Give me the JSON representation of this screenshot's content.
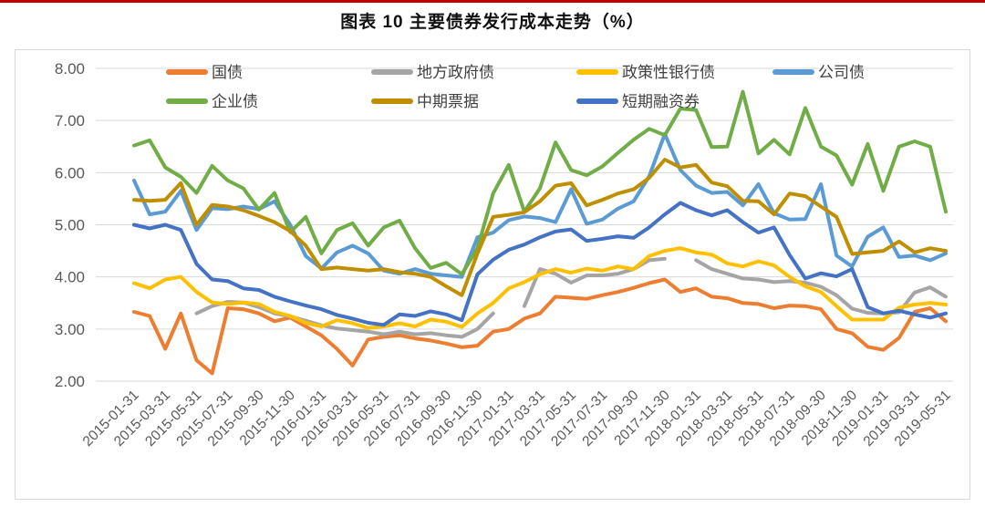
{
  "page": {
    "title": "图表 10 主要债券发行成本走势（%）",
    "accent_rule_color": "#c00000"
  },
  "chart_data": {
    "type": "line",
    "title": "图表 10 主要债券发行成本走势（%）",
    "grid": "horizontal",
    "legend_position": "top",
    "y_axis": {
      "min": 2,
      "max": 8,
      "tick_step": 1,
      "tick_labels": [
        "2.00",
        "3.00",
        "4.00",
        "5.00",
        "6.00",
        "7.00",
        "8.00"
      ]
    },
    "x_axis": {
      "point_count": 53,
      "start_month": "2015-01",
      "end_month": "2019-05",
      "tick_every_n_points": 2,
      "tick_labels": [
        "2015-01-31",
        "2015-03-31",
        "2015-05-31",
        "2015-07-31",
        "2015-09-30",
        "2015-11-30",
        "2016-01-31",
        "2016-03-31",
        "2016-05-31",
        "2016-07-31",
        "2016-09-30",
        "2016-11-30",
        "2017-01-31",
        "2017-03-31",
        "2017-05-31",
        "2017-07-31",
        "2017-09-30",
        "2017-11-30",
        "2018-01-31",
        "2018-03-31",
        "2018-05-31",
        "2018-07-31",
        "2018-09-30",
        "2018-11-30",
        "2019-01-31",
        "2019-03-31",
        "2019-05-31"
      ]
    },
    "series": [
      {
        "name": "国债",
        "color": "#ED7D31",
        "values": [
          3.33,
          3.25,
          2.62,
          3.3,
          2.4,
          2.15,
          3.4,
          3.38,
          3.3,
          3.15,
          3.22,
          3.05,
          2.88,
          2.62,
          2.3,
          2.8,
          2.85,
          2.88,
          2.82,
          2.78,
          2.72,
          2.65,
          2.68,
          2.95,
          3.0,
          3.2,
          3.3,
          3.62,
          3.6,
          3.58,
          3.65,
          3.71,
          3.79,
          3.88,
          3.95,
          3.71,
          3.78,
          3.62,
          3.59,
          3.5,
          3.48,
          3.4,
          3.45,
          3.44,
          3.38,
          3.0,
          2.92,
          2.66,
          2.6,
          2.83,
          3.33,
          3.4,
          3.15
        ]
      },
      {
        "name": "地方政府债",
        "color": "#A5A5A5",
        "values": [
          null,
          null,
          null,
          null,
          3.3,
          3.44,
          3.52,
          3.51,
          3.42,
          3.3,
          3.24,
          3.16,
          3.07,
          3.01,
          2.98,
          2.95,
          2.9,
          2.95,
          2.9,
          2.92,
          2.88,
          2.85,
          3.0,
          3.3,
          null,
          3.44,
          4.15,
          4.06,
          3.89,
          4.03,
          4.03,
          4.06,
          4.15,
          4.32,
          4.35,
          null,
          4.32,
          4.15,
          4.06,
          3.97,
          3.95,
          3.9,
          3.92,
          3.89,
          3.81,
          3.65,
          3.39,
          3.31,
          3.3,
          3.32,
          3.7,
          3.8,
          3.62
        ]
      },
      {
        "name": "政策性银行债",
        "color": "#FFC000",
        "values": [
          3.88,
          3.78,
          3.95,
          4.0,
          3.71,
          3.51,
          3.48,
          3.51,
          3.48,
          3.33,
          3.25,
          3.12,
          3.05,
          3.17,
          3.11,
          3.02,
          3.05,
          3.11,
          3.05,
          3.18,
          3.14,
          3.04,
          3.3,
          3.5,
          3.78,
          3.9,
          4.05,
          4.15,
          4.08,
          4.16,
          4.12,
          4.2,
          4.15,
          4.4,
          4.5,
          4.55,
          4.47,
          4.43,
          4.26,
          4.2,
          4.3,
          4.22,
          4.0,
          3.82,
          3.71,
          3.44,
          3.18,
          3.18,
          3.18,
          3.41,
          3.47,
          3.5,
          3.47
        ]
      },
      {
        "name": "公司债",
        "color": "#5B9BD5",
        "values": [
          5.85,
          5.2,
          5.25,
          5.65,
          4.9,
          5.32,
          5.3,
          5.35,
          5.3,
          5.45,
          5.0,
          4.4,
          4.16,
          4.47,
          4.6,
          4.45,
          4.12,
          4.06,
          4.15,
          4.06,
          4.03,
          4.0,
          4.76,
          4.85,
          5.09,
          5.16,
          5.13,
          5.05,
          5.68,
          5.02,
          5.1,
          5.31,
          5.45,
          5.93,
          6.74,
          6.05,
          5.75,
          5.61,
          5.63,
          5.37,
          5.78,
          5.22,
          5.1,
          5.11,
          5.78,
          4.41,
          4.2,
          4.77,
          4.95,
          4.38,
          4.41,
          4.32,
          4.45
        ]
      },
      {
        "name": "企业债",
        "color": "#70AD47",
        "values": [
          6.52,
          6.62,
          6.1,
          5.92,
          5.61,
          6.13,
          5.85,
          5.7,
          5.29,
          5.61,
          4.86,
          5.15,
          4.45,
          4.9,
          5.03,
          4.6,
          4.95,
          5.08,
          4.55,
          4.17,
          4.27,
          4.05,
          4.55,
          5.6,
          6.15,
          5.25,
          5.7,
          6.58,
          6.05,
          5.95,
          6.12,
          6.38,
          6.63,
          6.84,
          6.72,
          7.23,
          7.2,
          6.49,
          6.5,
          7.55,
          6.37,
          6.63,
          6.35,
          7.24,
          6.5,
          6.33,
          5.77,
          6.55,
          5.65,
          6.5,
          6.6,
          6.5,
          5.25
        ]
      },
      {
        "name": "中期票据",
        "color": "#BF8F00",
        "values": [
          5.48,
          5.46,
          5.48,
          5.8,
          5.0,
          5.38,
          5.35,
          5.28,
          5.17,
          5.05,
          4.88,
          4.6,
          4.15,
          4.18,
          4.15,
          4.12,
          4.15,
          4.09,
          4.06,
          4.0,
          3.82,
          3.65,
          4.45,
          5.15,
          5.19,
          5.24,
          5.45,
          5.75,
          5.8,
          5.37,
          5.48,
          5.6,
          5.68,
          5.9,
          6.25,
          6.1,
          6.15,
          5.81,
          5.74,
          5.46,
          5.45,
          5.2,
          5.6,
          5.55,
          5.35,
          5.15,
          4.44,
          4.47,
          4.5,
          4.68,
          4.47,
          4.55,
          4.5
        ]
      },
      {
        "name": "短期融资券",
        "color": "#4472C4",
        "values": [
          5.0,
          4.93,
          5.0,
          4.9,
          4.25,
          3.95,
          3.92,
          3.78,
          3.75,
          3.62,
          3.53,
          3.45,
          3.38,
          3.27,
          3.2,
          3.12,
          3.08,
          3.28,
          3.25,
          3.34,
          3.28,
          3.17,
          4.05,
          4.33,
          4.52,
          4.62,
          4.76,
          4.87,
          4.91,
          4.69,
          4.73,
          4.78,
          4.75,
          4.95,
          5.2,
          5.42,
          5.28,
          5.18,
          5.28,
          5.05,
          4.85,
          4.95,
          4.42,
          3.97,
          4.07,
          4.01,
          4.15,
          3.42,
          3.3,
          3.35,
          3.28,
          3.22,
          3.3
        ]
      }
    ]
  }
}
